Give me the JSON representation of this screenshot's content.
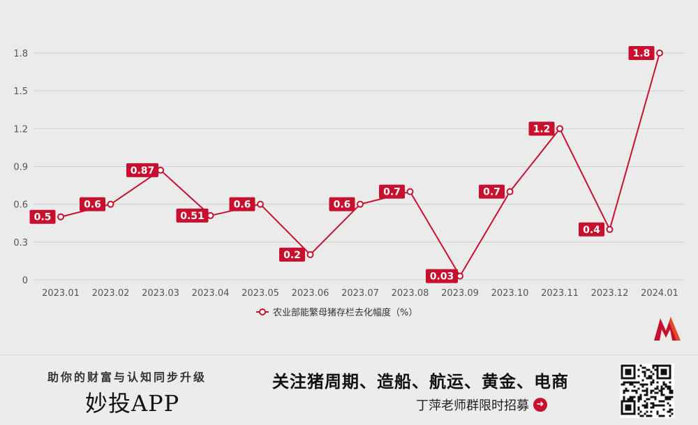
{
  "chart_data": {
    "type": "line",
    "categories": [
      "2023.01",
      "2023.02",
      "2023.03",
      "2023.04",
      "2023.05",
      "2023.06",
      "2023.07",
      "2023.08",
      "2023.09",
      "2023.10",
      "2023.11",
      "2023.12",
      "2024.01"
    ],
    "series": [
      {
        "name": "农业部能繁母猪存栏去化幅度（%）",
        "values": [
          0.5,
          0.6,
          0.87,
          0.51,
          0.6,
          0.2,
          0.6,
          0.7,
          0.03,
          0.7,
          1.2,
          0.4,
          1.8
        ],
        "labels": [
          "0.5",
          "0.6",
          "0.87",
          "0.51",
          "0.6",
          "0.2",
          "0.6",
          "0.7",
          "0.03",
          "0.7",
          "1.2",
          "0.4",
          "1.8"
        ]
      }
    ],
    "yticks": [
      "0",
      "0.3",
      "0.6",
      "0.9",
      "1.2",
      "1.5",
      "1.8"
    ],
    "ylim": [
      0,
      1.8
    ],
    "grid": true,
    "legend_position": "bottom-center",
    "colors": {
      "series": "#c8102e",
      "grid": "#cfcfcf"
    }
  },
  "banner": {
    "slogan": "助你的财富与认知同步升级",
    "brand": "妙投APP",
    "headline": "关注猪周期、造船、航运、黄金、电商",
    "subline": "丁萍老师群限时招募",
    "arrow_icon": "arrow-right-circle-icon",
    "qr_icon": "qr-code-icon"
  }
}
